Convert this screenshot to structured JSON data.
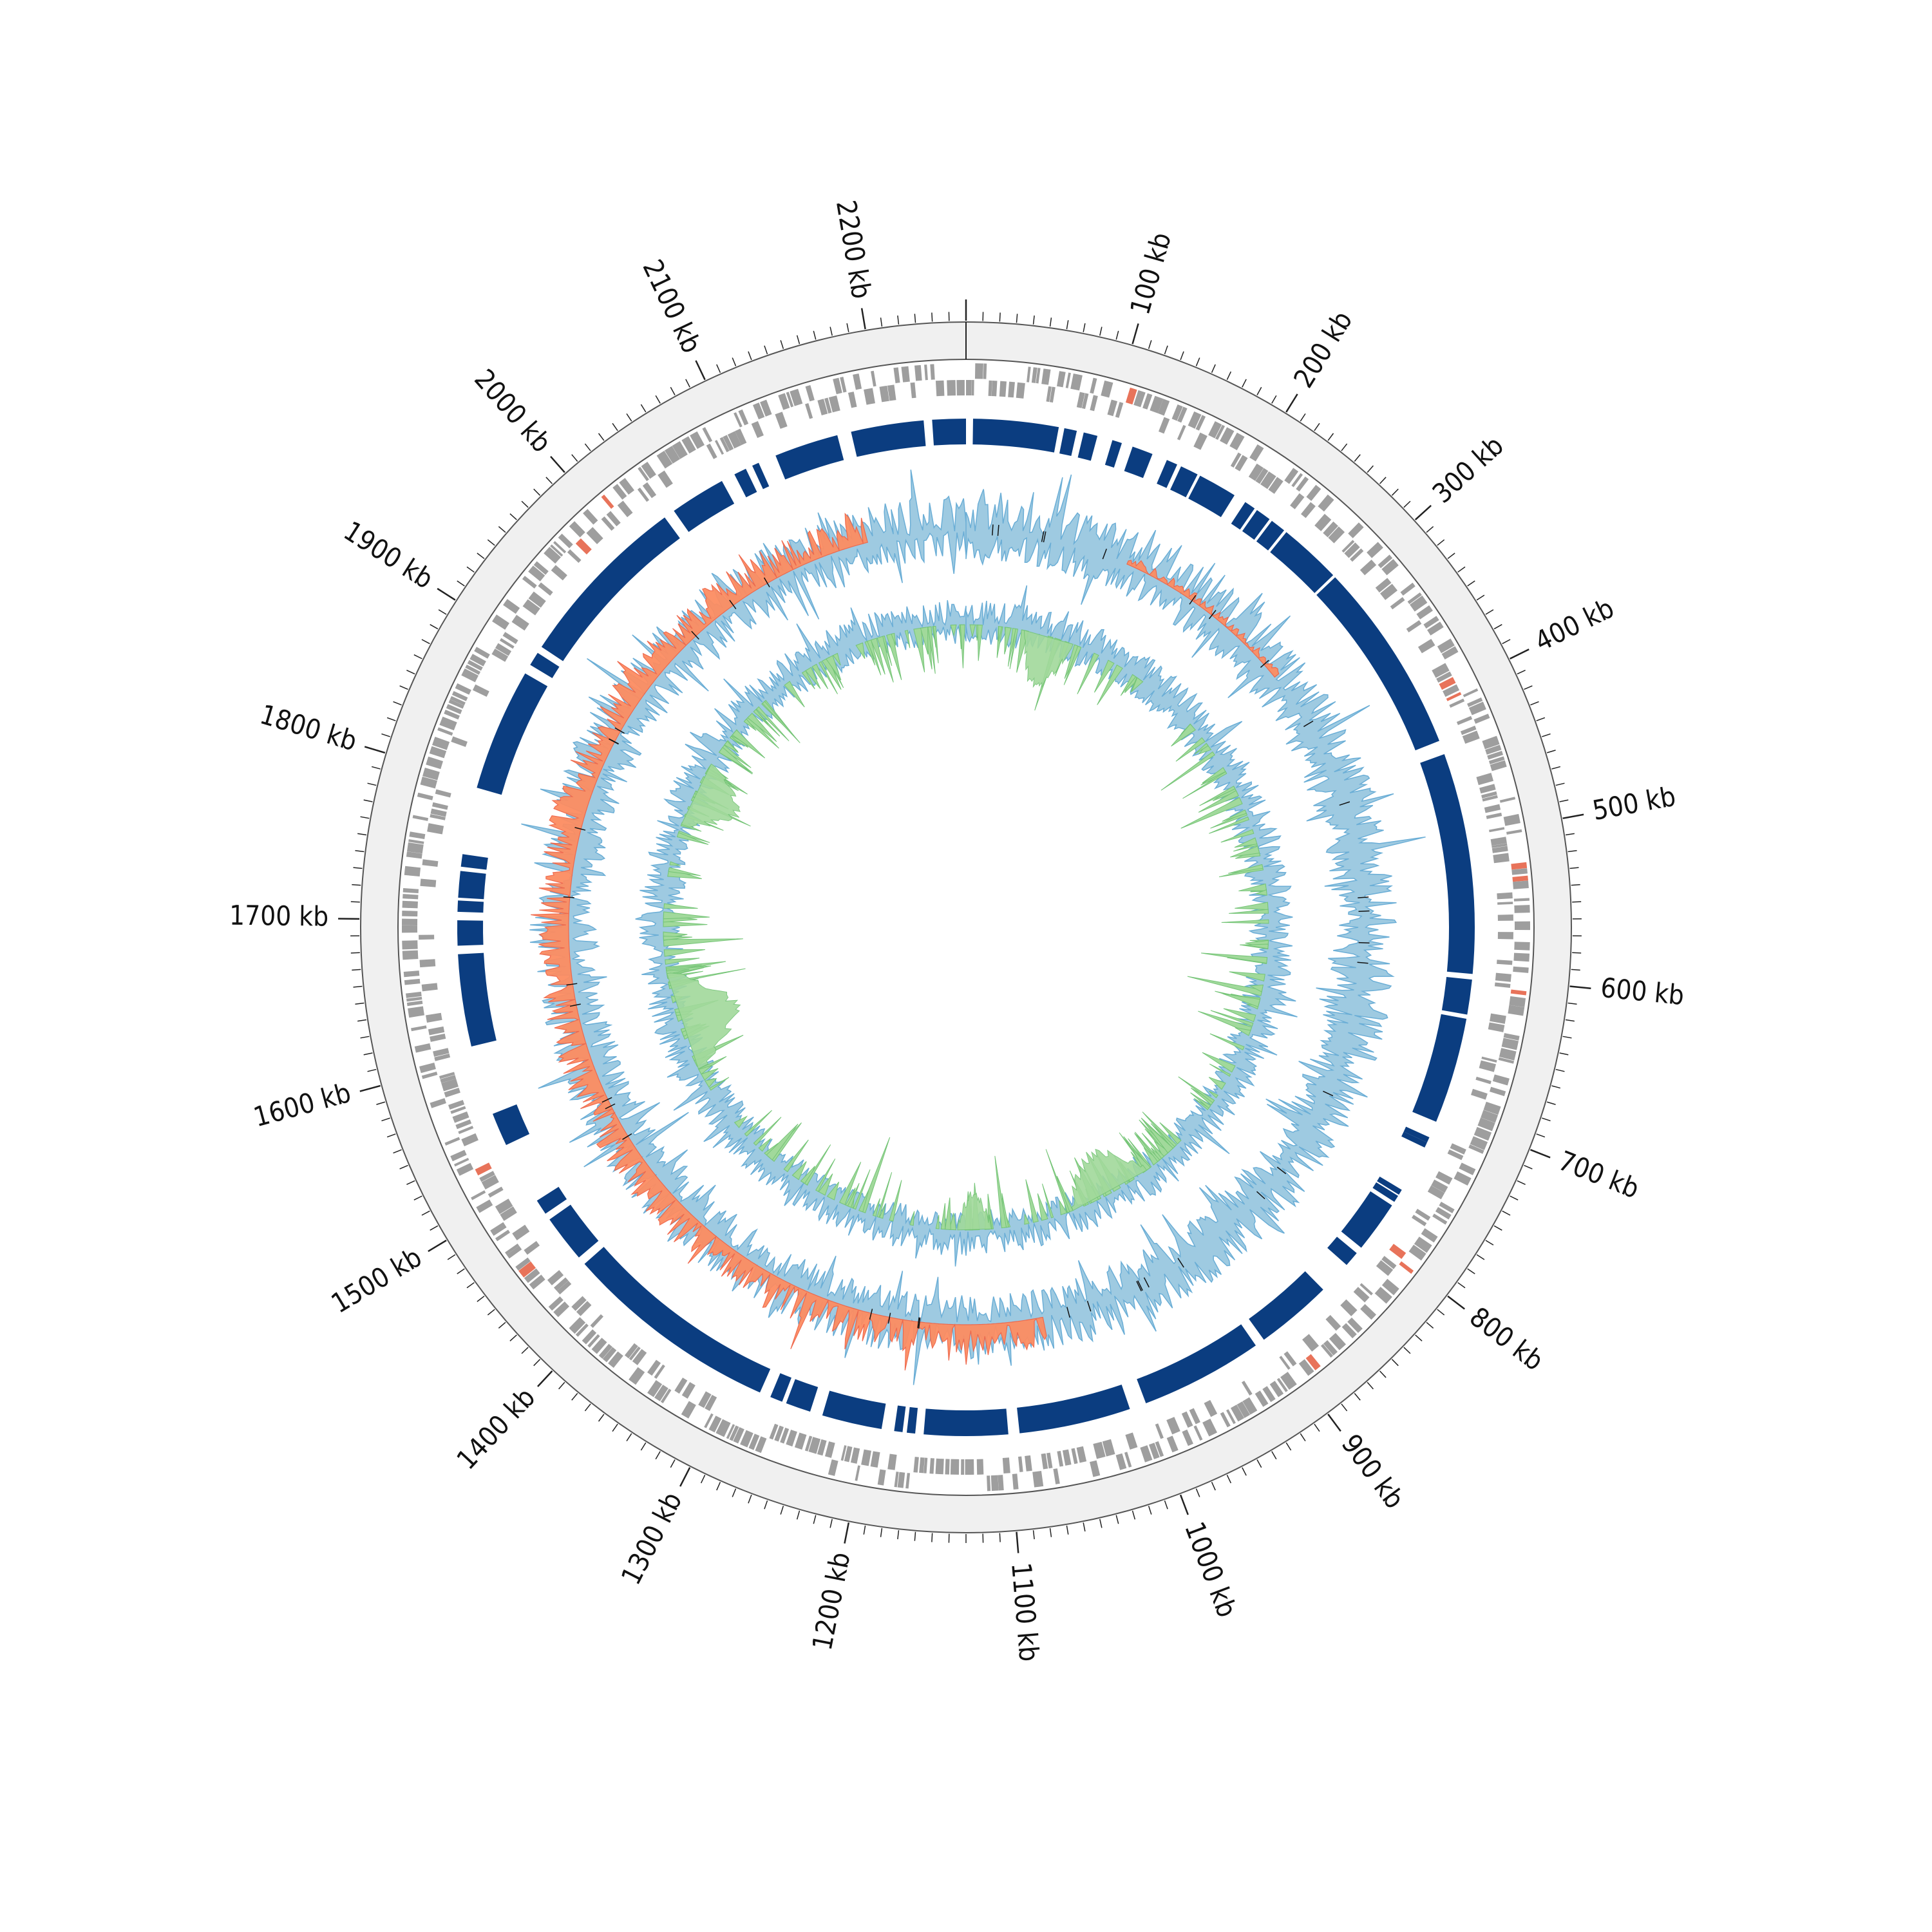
{
  "colors": {
    "background": "#ffffff",
    "outer_ring": "#f0f0f0",
    "ring_stroke": "#555555",
    "tick": "#222222",
    "gene_feature": "#9e9e9e",
    "gene_feature_highlight": "#e8735a",
    "region_block": "#0b3d80",
    "gc_content_positive": "#9ecae1",
    "gc_content_negative": "#fc8d62",
    "gc_content_line": "#6baed6",
    "gc_content_alt_line": "#ef6548",
    "gc_skew_positive": "#a1d99b",
    "gc_skew_fill": "#74c476",
    "gc_skew_line": "#6baed6",
    "marker": "#111111"
  },
  "chart_data": {
    "type": "circular-genome",
    "genome_length_kb": 2260,
    "tick_unit": "kb",
    "major_ticks_kb": [
      100,
      200,
      300,
      400,
      500,
      600,
      700,
      800,
      900,
      1000,
      1100,
      1200,
      1300,
      1400,
      1500,
      1600,
      1700,
      1800,
      1900,
      2000,
      2100,
      2200
    ],
    "major_tick_labels": [
      "100 kb",
      "200 kb",
      "300 kb",
      "400 kb",
      "500 kb",
      "600 kb",
      "700 kb",
      "800 kb",
      "900 kb",
      "1000 kb",
      "1100 kb",
      "1200 kb",
      "1300 kb",
      "1400 kb",
      "1500 kb",
      "1600 kb",
      "1700 kb",
      "1800 kb",
      "1900 kb",
      "2000 kb",
      "2100 kb",
      "2200 kb"
    ],
    "minor_tick_step_kb": 10,
    "region_blocks_kb": [
      [
        5,
        66
      ],
      [
        70,
        79
      ],
      [
        84,
        94
      ],
      [
        105,
        112
      ],
      [
        120,
        135
      ],
      [
        146,
        154
      ],
      [
        157,
        170
      ],
      [
        172,
        200
      ],
      [
        209,
        217
      ],
      [
        219,
        230
      ],
      [
        232,
        243
      ],
      [
        245,
        290
      ],
      [
        292,
        430
      ],
      [
        440,
        598
      ],
      [
        602,
        627
      ],
      [
        630,
        706
      ],
      [
        718,
        722
      ],
      [
        722,
        726
      ],
      [
        760,
        764
      ],
      [
        765,
        770
      ],
      [
        773,
        810
      ],
      [
        815,
        826
      ],
      [
        850,
        905
      ],
      [
        912,
        1000
      ],
      [
        1012,
        1092
      ],
      [
        1100,
        1160
      ],
      [
        1166,
        1172
      ],
      [
        1175,
        1181
      ],
      [
        1190,
        1233
      ],
      [
        1242,
        1260
      ],
      [
        1263,
        1272
      ],
      [
        1280,
        1435
      ],
      [
        1441,
        1475
      ],
      [
        1480,
        1491
      ],
      [
        1536,
        1560
      ],
      [
        1610,
        1676
      ],
      [
        1682,
        1700
      ],
      [
        1706,
        1714
      ],
      [
        1716,
        1735
      ],
      [
        1738,
        1747
      ],
      [
        1795,
        1883
      ],
      [
        1890,
        1900
      ],
      [
        1905,
        2032
      ],
      [
        2040,
        2080
      ],
      [
        2090,
        2099
      ],
      [
        2104,
        2109
      ],
      [
        2122,
        2168
      ],
      [
        2178,
        2230
      ],
      [
        2236,
        2260
      ]
    ],
    "tracks": [
      "outer coordinate ring",
      "gene features (grey, red highlights)",
      "region blocks (dark blue)",
      "GC content (blue / red)",
      "GC skew (blue / green)"
    ],
    "grid": false,
    "legend": "none"
  }
}
